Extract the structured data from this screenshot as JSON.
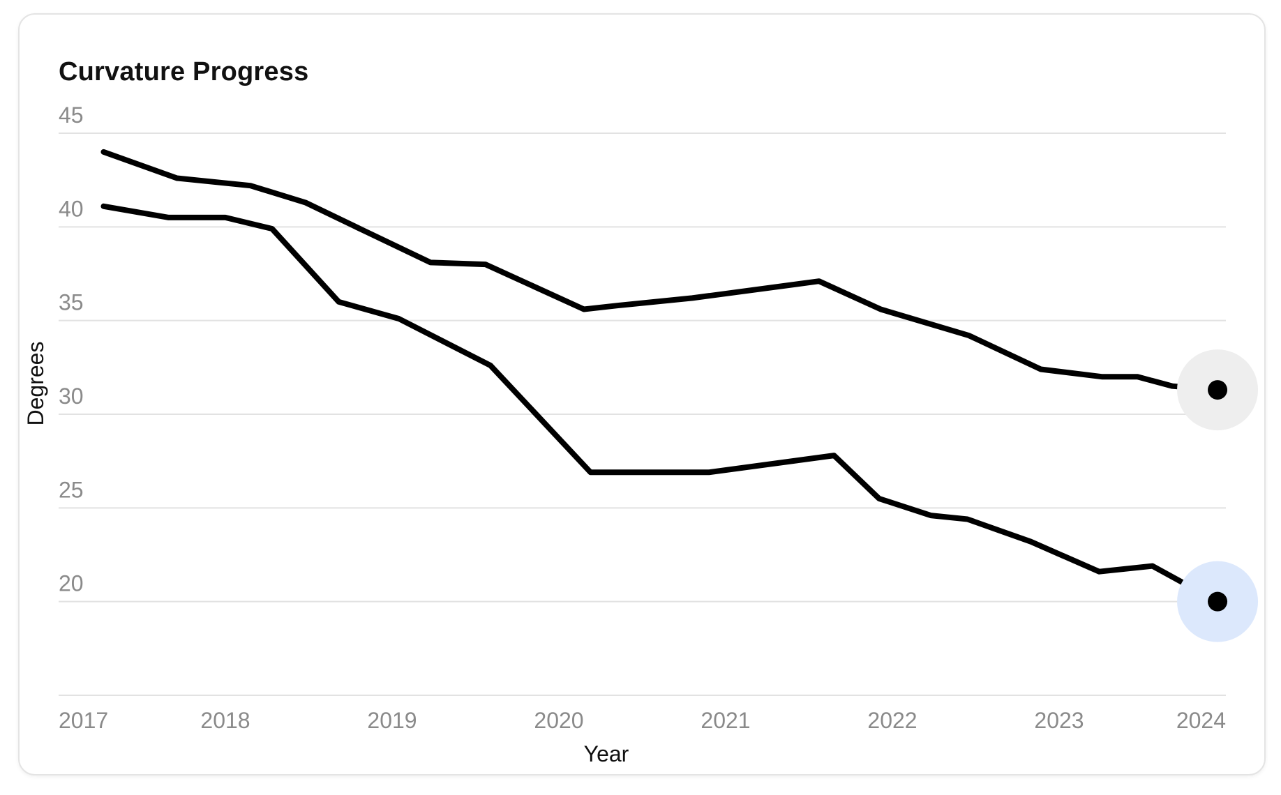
{
  "chart_data": {
    "type": "line",
    "title": "Curvature Progress",
    "xlabel": "Year",
    "ylabel": "Degrees",
    "xlim": [
      2017,
      2024
    ],
    "ylim": [
      15,
      45
    ],
    "yticks": [
      20,
      25,
      30,
      35,
      40,
      45
    ],
    "xticks": [
      2017,
      2018,
      2019,
      2020,
      2021,
      2022,
      2023,
      2024
    ],
    "grid": true,
    "legend": "none",
    "series": [
      {
        "color": "#000000",
        "highlight_color": "#eeeeee",
        "points": [
          [
            2017.27,
            44.0
          ],
          [
            2017.71,
            42.6
          ],
          [
            2018.15,
            42.2
          ],
          [
            2018.48,
            41.3
          ],
          [
            2018.83,
            39.8
          ],
          [
            2019.23,
            38.1
          ],
          [
            2019.56,
            38.0
          ],
          [
            2020.15,
            35.6
          ],
          [
            2020.35,
            35.8
          ],
          [
            2020.8,
            36.2
          ],
          [
            2021.56,
            37.1
          ],
          [
            2021.93,
            35.6
          ],
          [
            2022.46,
            34.2
          ],
          [
            2022.89,
            32.4
          ],
          [
            2023.26,
            32.0
          ],
          [
            2023.47,
            32.0
          ],
          [
            2023.68,
            31.5
          ],
          [
            2023.95,
            31.3
          ]
        ]
      },
      {
        "color": "#000000",
        "highlight_color": "#dce8fc",
        "points": [
          [
            2017.27,
            41.1
          ],
          [
            2017.66,
            40.5
          ],
          [
            2018.0,
            40.5
          ],
          [
            2018.28,
            39.9
          ],
          [
            2018.68,
            36.0
          ],
          [
            2019.04,
            35.1
          ],
          [
            2019.59,
            32.6
          ],
          [
            2020.19,
            26.9
          ],
          [
            2020.58,
            26.9
          ],
          [
            2020.9,
            26.9
          ],
          [
            2021.65,
            27.8
          ],
          [
            2021.92,
            25.5
          ],
          [
            2022.23,
            24.6
          ],
          [
            2022.45,
            24.4
          ],
          [
            2022.83,
            23.2
          ],
          [
            2023.24,
            21.6
          ],
          [
            2023.56,
            21.9
          ],
          [
            2023.95,
            20.0
          ]
        ]
      }
    ]
  }
}
